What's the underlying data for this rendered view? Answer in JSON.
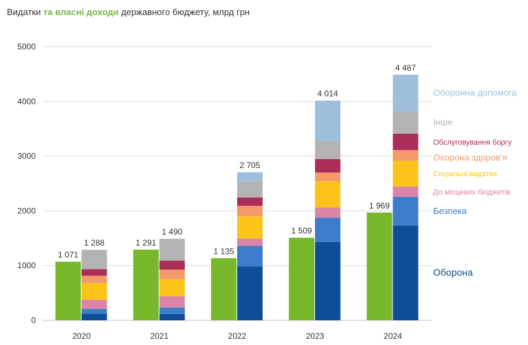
{
  "chart_data": {
    "type": "bar",
    "title_parts": {
      "before": "Видатки ",
      "highlight": "та власні доходи",
      "after": " державного бюджету, млрд грн"
    },
    "categories": [
      "2020",
      "2021",
      "2022",
      "2023",
      "2024"
    ],
    "ylim": [
      0,
      5000
    ],
    "y_ticks": [
      "0",
      "1000",
      "2000",
      "3000",
      "4000",
      "5000"
    ],
    "grid": true,
    "revenue": {
      "color": "#76b82a",
      "values": [
        1071,
        1291,
        1135,
        1509,
        1969
      ],
      "labels": [
        "1 071",
        "1 291",
        "1 135",
        "1 509",
        "1 969"
      ]
    },
    "expenditure_totals": [
      1288,
      1490,
      2705,
      4014,
      4487
    ],
    "expenditure_total_labels": [
      "1 288",
      "1 490",
      "2 705",
      "4 014",
      "4 487"
    ],
    "expenditure_series": [
      {
        "name": "Оборона",
        "color": "#0e4e96",
        "values": [
          120,
          115,
          985,
          1430,
          1730
        ]
      },
      {
        "name": "Безпека",
        "color": "#3d7ccb",
        "values": [
          90,
          120,
          375,
          445,
          525
        ]
      },
      {
        "name": "До місцевих бюджетів",
        "color": "#db84a7",
        "values": [
          165,
          205,
          135,
          190,
          190
        ]
      },
      {
        "name": "Соціальні видатки",
        "color": "#fcc419",
        "values": [
          305,
          310,
          405,
          475,
          470
        ]
      },
      {
        "name": "Охорона здоров’я",
        "color": "#f4996a",
        "values": [
          135,
          175,
          190,
          160,
          195
        ]
      },
      {
        "name": "Обслуговування боргу",
        "color": "#ab2e5a",
        "values": [
          120,
          165,
          155,
          245,
          300
        ]
      },
      {
        "name": "Інше",
        "color": "#b3b3b3",
        "values": [
          353,
          400,
          295,
          335,
          410
        ]
      },
      {
        "name": "Оборонна допомога",
        "color": "#9ebfdb",
        "values": [
          0,
          0,
          165,
          734,
          667
        ]
      }
    ]
  }
}
